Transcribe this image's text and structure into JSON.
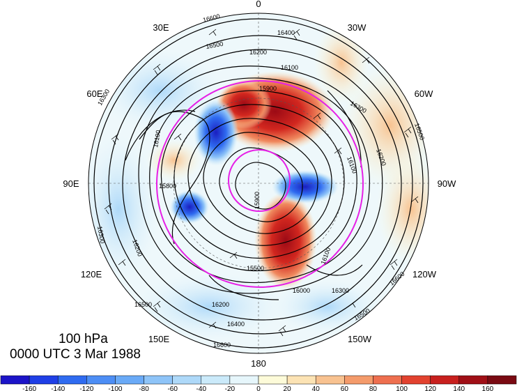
{
  "map": {
    "level": "100 hPa",
    "valid_time": "0000 UTC 3 Mar 1988",
    "projection": "north polar stereographic",
    "longitude_labels": [
      {
        "text": "0",
        "lon": 0
      },
      {
        "text": "30W",
        "lon": -30
      },
      {
        "text": "60W",
        "lon": -60
      },
      {
        "text": "90W",
        "lon": -90
      },
      {
        "text": "120W",
        "lon": -120
      },
      {
        "text": "150W",
        "lon": -150
      },
      {
        "text": "180",
        "lon": 180
      },
      {
        "text": "150E",
        "lon": 150
      },
      {
        "text": "120E",
        "lon": 120
      },
      {
        "text": "90E",
        "lon": 90
      },
      {
        "text": "60E",
        "lon": 60
      },
      {
        "text": "30E",
        "lon": 30
      }
    ],
    "contour_labels": [
      "16600",
      "16500",
      "16400",
      "16200",
      "16100",
      "16300",
      "16500",
      "16200",
      "16100",
      "15900",
      "16300",
      "16100",
      "15800",
      "15900",
      "15500",
      "16300",
      "16200",
      "16000",
      "16100",
      "16300",
      "16200",
      "16400",
      "16500",
      "16600",
      "16500",
      "16600"
    ],
    "colors": {
      "positive_anomaly": "#c40d1f",
      "negative_anomaly": "#1a3fd9",
      "highlight_circle": "#e620e6",
      "contour": "#000000"
    }
  },
  "colorbar": {
    "ticks": [
      "-160",
      "-140",
      "-120",
      "-100",
      "-80",
      "-60",
      "-40",
      "-20",
      "0",
      "20",
      "40",
      "60",
      "80",
      "100",
      "120",
      "140",
      "160"
    ],
    "colors": [
      "#1c14c8",
      "#1f3fe6",
      "#2f6bf0",
      "#4d8ef5",
      "#6aaaf7",
      "#8ec4f8",
      "#aed9f9",
      "#cbeafa",
      "#e6f6fb",
      "#fdfbd9",
      "#fce3b4",
      "#f8c290",
      "#f49b6b",
      "#ee6f4f",
      "#e2422f",
      "#c8201e",
      "#a00f16",
      "#7a0a12"
    ]
  }
}
